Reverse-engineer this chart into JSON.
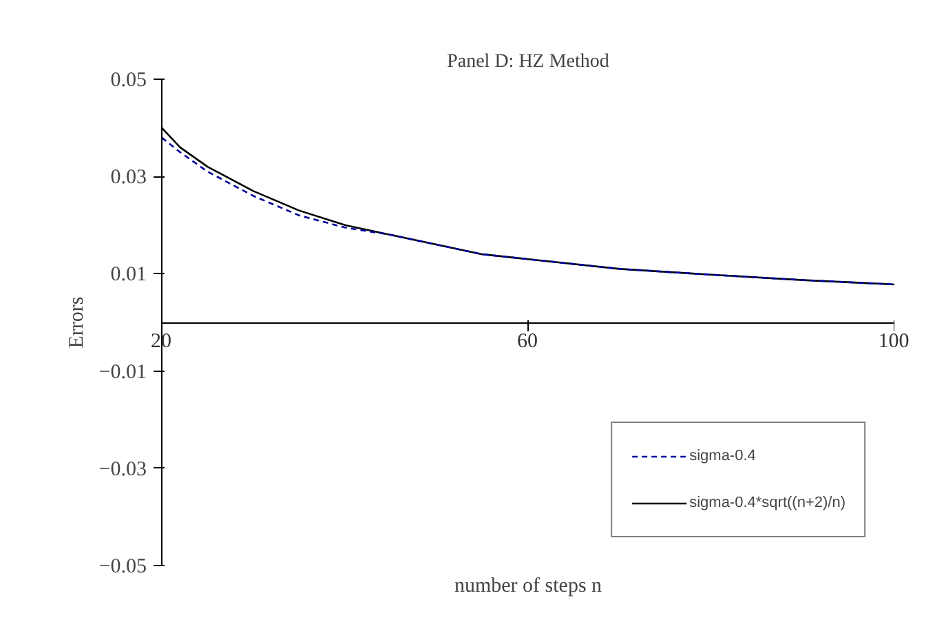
{
  "chart_data": {
    "type": "line",
    "title": "Panel D: HZ Method",
    "xlabel": "number of steps n",
    "ylabel": "Errors",
    "x": [
      20,
      22,
      25,
      30,
      35,
      40,
      45,
      50,
      55,
      60,
      70,
      80,
      90,
      100
    ],
    "series": [
      {
        "name": "sigma-0.4",
        "color": "#0000a0",
        "line_style": "dashed",
        "values": [
          0.038,
          0.035,
          0.031,
          0.026,
          0.022,
          0.0195,
          0.018,
          0.016,
          0.014,
          0.013,
          0.011,
          0.0098,
          0.0087,
          0.0078
        ]
      },
      {
        "name": "sigma-0.4*sqrt((n+2)/n)",
        "color": "#000000",
        "line_style": "solid",
        "values": [
          0.04,
          0.036,
          0.032,
          0.027,
          0.023,
          0.02,
          0.018,
          0.016,
          0.014,
          0.013,
          0.011,
          0.0098,
          0.0087,
          0.0078
        ]
      }
    ],
    "xlim": [
      20,
      100
    ],
    "xticks": [
      20,
      60,
      100
    ],
    "ylim": [
      -0.05,
      0.05
    ],
    "yticks": [
      0.05,
      0.03,
      0.01,
      -0.01,
      -0.03,
      -0.05
    ],
    "grid": false,
    "legend": "bottom right",
    "marker": "none"
  }
}
